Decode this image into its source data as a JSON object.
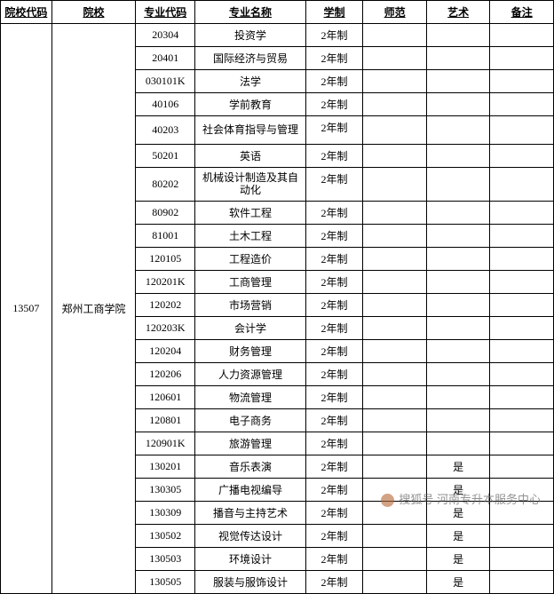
{
  "table": {
    "headers": [
      "院校代码",
      "院校",
      "专业代码",
      "专业名称",
      "学制",
      "师范",
      "艺术",
      "备注"
    ],
    "school_code": "13507",
    "school_name": "郑州工商学院",
    "rows": [
      {
        "major_code": "20304",
        "major_name": "投资学",
        "duration": "2年制",
        "normal": "",
        "art": "",
        "remark": ""
      },
      {
        "major_code": "20401",
        "major_name": "国际经济与贸易",
        "duration": "2年制",
        "normal": "",
        "art": "",
        "remark": ""
      },
      {
        "major_code": "030101K",
        "major_name": "法学",
        "duration": "2年制",
        "normal": "",
        "art": "",
        "remark": ""
      },
      {
        "major_code": "40106",
        "major_name": "学前教育",
        "duration": "2年制",
        "normal": "",
        "art": "",
        "remark": ""
      },
      {
        "major_code": "40203",
        "major_name": "社会体育指导与管理",
        "duration": "2年制",
        "normal": "",
        "art": "",
        "remark": "",
        "twoline": true
      },
      {
        "major_code": "50201",
        "major_name": "英语",
        "duration": "2年制",
        "normal": "",
        "art": "",
        "remark": ""
      },
      {
        "major_code": "80202",
        "major_name": "机械设计制造及其自动化",
        "duration": "2年制",
        "normal": "",
        "art": "",
        "remark": "",
        "twoline": true
      },
      {
        "major_code": "80902",
        "major_name": "软件工程",
        "duration": "2年制",
        "normal": "",
        "art": "",
        "remark": ""
      },
      {
        "major_code": "81001",
        "major_name": "土木工程",
        "duration": "2年制",
        "normal": "",
        "art": "",
        "remark": ""
      },
      {
        "major_code": "120105",
        "major_name": "工程造价",
        "duration": "2年制",
        "normal": "",
        "art": "",
        "remark": ""
      },
      {
        "major_code": "120201K",
        "major_name": "工商管理",
        "duration": "2年制",
        "normal": "",
        "art": "",
        "remark": ""
      },
      {
        "major_code": "120202",
        "major_name": "市场营销",
        "duration": "2年制",
        "normal": "",
        "art": "",
        "remark": ""
      },
      {
        "major_code": "120203K",
        "major_name": "会计学",
        "duration": "2年制",
        "normal": "",
        "art": "",
        "remark": ""
      },
      {
        "major_code": "120204",
        "major_name": "财务管理",
        "duration": "2年制",
        "normal": "",
        "art": "",
        "remark": ""
      },
      {
        "major_code": "120206",
        "major_name": "人力资源管理",
        "duration": "2年制",
        "normal": "",
        "art": "",
        "remark": ""
      },
      {
        "major_code": "120601",
        "major_name": "物流管理",
        "duration": "2年制",
        "normal": "",
        "art": "",
        "remark": ""
      },
      {
        "major_code": "120801",
        "major_name": "电子商务",
        "duration": "2年制",
        "normal": "",
        "art": "",
        "remark": ""
      },
      {
        "major_code": "120901K",
        "major_name": "旅游管理",
        "duration": "2年制",
        "normal": "",
        "art": "",
        "remark": ""
      },
      {
        "major_code": "130201",
        "major_name": "音乐表演",
        "duration": "2年制",
        "normal": "",
        "art": "是",
        "remark": ""
      },
      {
        "major_code": "130305",
        "major_name": "广播电视编导",
        "duration": "2年制",
        "normal": "",
        "art": "是",
        "remark": ""
      },
      {
        "major_code": "130309",
        "major_name": "播音与主持艺术",
        "duration": "2年制",
        "normal": "",
        "art": "是",
        "remark": ""
      },
      {
        "major_code": "130502",
        "major_name": "视觉传达设计",
        "duration": "2年制",
        "normal": "",
        "art": "是",
        "remark": ""
      },
      {
        "major_code": "130503",
        "major_name": "环境设计",
        "duration": "2年制",
        "normal": "",
        "art": "是",
        "remark": ""
      },
      {
        "major_code": "130505",
        "major_name": "服装与服饰设计",
        "duration": "2年制",
        "normal": "",
        "art": "是",
        "remark": ""
      }
    ]
  },
  "watermark": {
    "text": "搜狐号 河南专升本服务中心"
  }
}
